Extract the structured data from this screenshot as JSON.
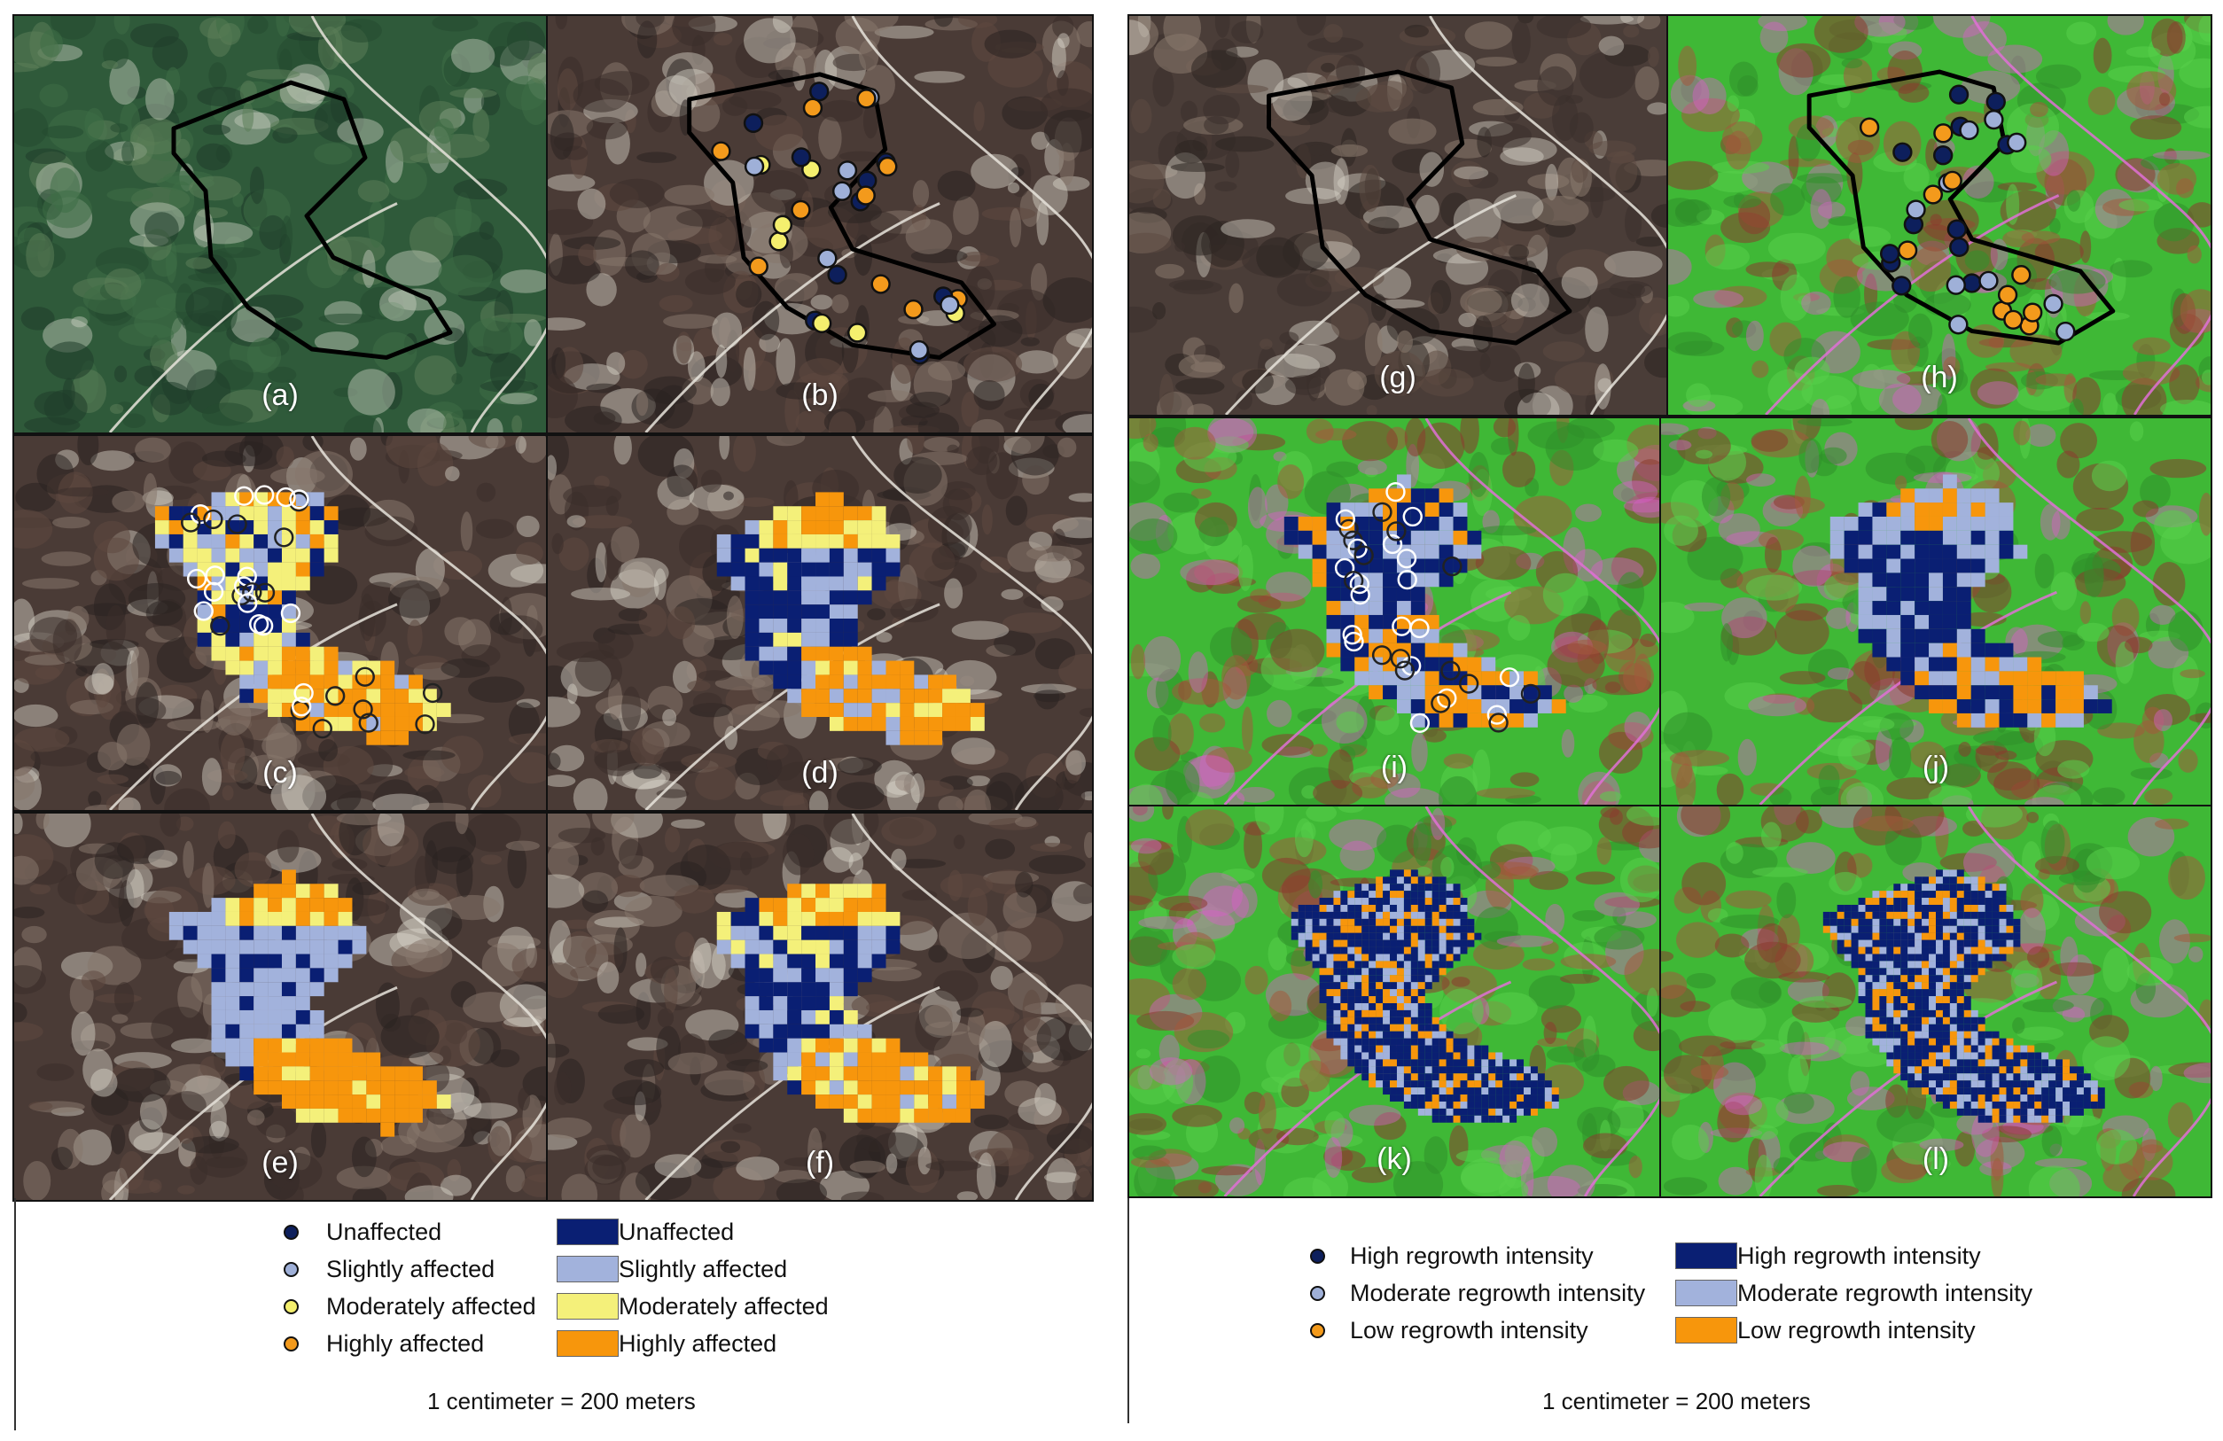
{
  "panels": [
    {
      "label": "(a)",
      "type": "rgb",
      "outline": true,
      "points": "none",
      "classes": "none"
    },
    {
      "label": "(b)",
      "type": "rgb2",
      "outline": true,
      "points": "damage",
      "classes": "none"
    },
    {
      "label": "(c)",
      "type": "rgb2",
      "outline": false,
      "points": "hollow",
      "classes": "damage-c"
    },
    {
      "label": "(d)",
      "type": "rgb2",
      "outline": false,
      "points": "none",
      "classes": "damage-d"
    },
    {
      "label": "(e)",
      "type": "rgb2",
      "outline": false,
      "points": "none",
      "classes": "damage-e"
    },
    {
      "label": "(f)",
      "type": "rgb2",
      "outline": false,
      "points": "none",
      "classes": "damage-f"
    },
    {
      "label": "(g)",
      "type": "rgb3",
      "outline": true,
      "points": "none",
      "classes": "none"
    },
    {
      "label": "(h)",
      "type": "false",
      "outline": true,
      "points": "regrowth",
      "classes": "none"
    },
    {
      "label": "(i)",
      "type": "false",
      "outline": false,
      "points": "hollow-r",
      "classes": "regrowth-i"
    },
    {
      "label": "(j)",
      "type": "false",
      "outline": false,
      "points": "none",
      "classes": "regrowth-j"
    },
    {
      "label": "(k)",
      "type": "false",
      "outline": false,
      "points": "none",
      "classes": "regrowth-k"
    },
    {
      "label": "(l)",
      "type": "false",
      "outline": false,
      "points": "none",
      "classes": "regrowth-l"
    }
  ],
  "legend_left": {
    "points": [
      {
        "label": "Unaffected",
        "color": "#0d1f5c"
      },
      {
        "label": "Slightly affected",
        "color": "#9fb0d8"
      },
      {
        "label": "Moderately affected",
        "color": "#f4ef6e"
      },
      {
        "label": "Highly affected",
        "color": "#f39a1c"
      }
    ],
    "classes": [
      {
        "label": "Unaffected",
        "color": "#0a1f73"
      },
      {
        "label": "Slightly affected",
        "color": "#a2b2dc"
      },
      {
        "label": "Moderately affected",
        "color": "#f4f07a"
      },
      {
        "label": "Highly affected",
        "color": "#f7960c"
      }
    ],
    "scale": "1 centimeter = 200 meters"
  },
  "legend_right": {
    "points": [
      {
        "label": "High regrowth intensity",
        "color": "#0d1f5c"
      },
      {
        "label": "Moderate regrowth intensity",
        "color": "#9fb0d8"
      },
      {
        "label": "Low regrowth intensity",
        "color": "#f39a1c"
      }
    ],
    "classes": [
      {
        "label": "High regrowth intensity",
        "color": "#0a1f73"
      },
      {
        "label": "Moderate regrowth intensity",
        "color": "#a2b2dc"
      },
      {
        "label": "Low regrowth intensity",
        "color": "#f7960c"
      }
    ],
    "scale": "1 centimeter = 200 meters"
  }
}
